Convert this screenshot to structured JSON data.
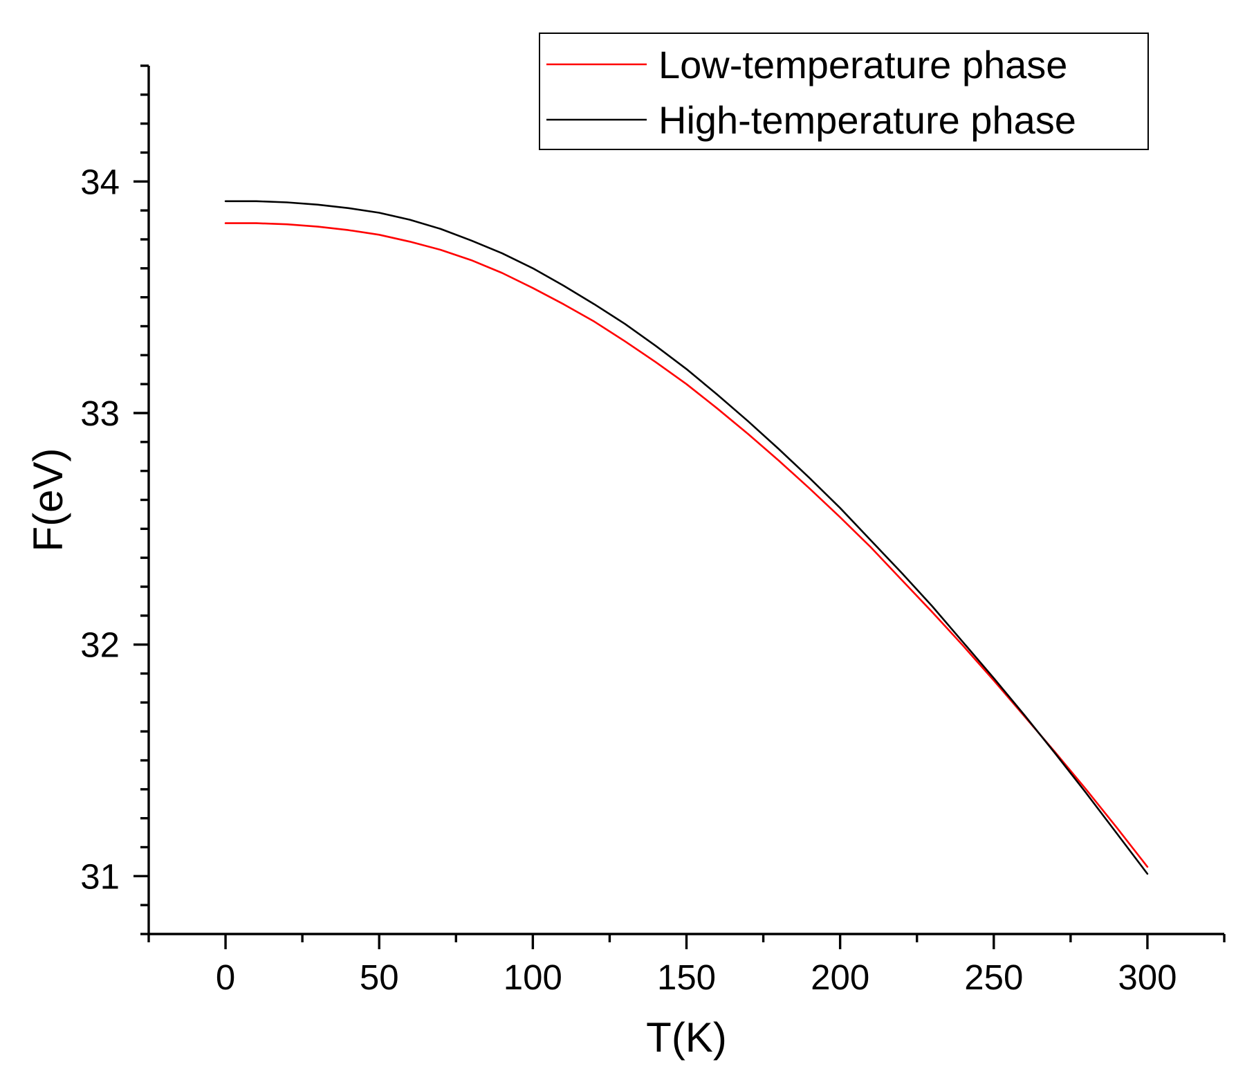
{
  "chart_data": {
    "type": "line",
    "title": "",
    "xlabel": "T(K)",
    "ylabel": "F(eV)",
    "xlim": [
      -25,
      325
    ],
    "ylim": [
      30.75,
      34.5
    ],
    "x_ticks": [
      0,
      50,
      100,
      150,
      200,
      250,
      300
    ],
    "x_tick_labels": [
      "0",
      "50",
      "100",
      "150",
      "200",
      "250",
      "300"
    ],
    "y_ticks": [
      31,
      32,
      33,
      34
    ],
    "y_tick_labels": [
      "31",
      "32",
      "33",
      "34"
    ],
    "x_minor_step": 25,
    "y_minor_step": 0.125,
    "grid": false,
    "legend_position": "top-right",
    "series": [
      {
        "name": "Low-temperature phase",
        "color": "#ff0000",
        "x": [
          0,
          10,
          20,
          30,
          40,
          50,
          60,
          70,
          80,
          90,
          100,
          110,
          120,
          130,
          140,
          150,
          160,
          170,
          180,
          190,
          200,
          210,
          220,
          230,
          240,
          250,
          260,
          270,
          280,
          290,
          300
        ],
        "y": [
          33.82,
          33.82,
          33.815,
          33.805,
          33.79,
          33.77,
          33.74,
          33.705,
          33.66,
          33.605,
          33.54,
          33.47,
          33.395,
          33.31,
          33.22,
          33.125,
          33.02,
          32.91,
          32.795,
          32.675,
          32.55,
          32.42,
          32.28,
          32.14,
          31.995,
          31.845,
          31.69,
          31.535,
          31.375,
          31.21,
          31.04
        ]
      },
      {
        "name": "High-temperature phase",
        "color": "#000000",
        "x": [
          0,
          10,
          20,
          30,
          40,
          50,
          60,
          70,
          80,
          90,
          100,
          110,
          120,
          130,
          140,
          150,
          160,
          170,
          180,
          190,
          200,
          210,
          220,
          230,
          240,
          250,
          260,
          270,
          280,
          290,
          300
        ],
        "y": [
          33.915,
          33.915,
          33.91,
          33.9,
          33.885,
          33.865,
          33.835,
          33.795,
          33.745,
          33.69,
          33.625,
          33.55,
          33.47,
          33.385,
          33.29,
          33.19,
          33.08,
          32.965,
          32.845,
          32.72,
          32.59,
          32.45,
          32.31,
          32.165,
          32.01,
          31.855,
          31.695,
          31.53,
          31.36,
          31.185,
          31.01
        ]
      }
    ]
  }
}
